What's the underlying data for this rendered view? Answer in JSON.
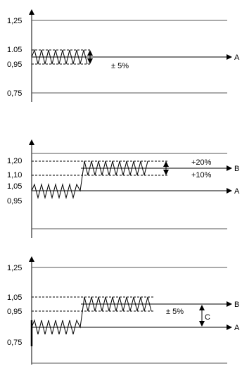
{
  "panel_top": {
    "y_labels": [
      "1,25",
      "1.05",
      "0,95",
      "0,75"
    ],
    "tolerance_label": "± 5%",
    "line_label": "A"
  },
  "panel_middle": {
    "y_labels": [
      "1,20",
      "1,10",
      "1,05",
      "0,95"
    ],
    "tolerance_labels": [
      "+20%",
      "+10%"
    ],
    "line_labels": [
      "B",
      "A"
    ]
  },
  "panel_bottom": {
    "y_labels": [
      "1,25",
      "1,05",
      "0,95",
      "0,75"
    ],
    "tolerance_label": "± 5%",
    "offset_label": "C",
    "line_labels": [
      "B",
      "A"
    ]
  },
  "colors": {
    "ink": "#000000",
    "background": "#ffffff"
  }
}
